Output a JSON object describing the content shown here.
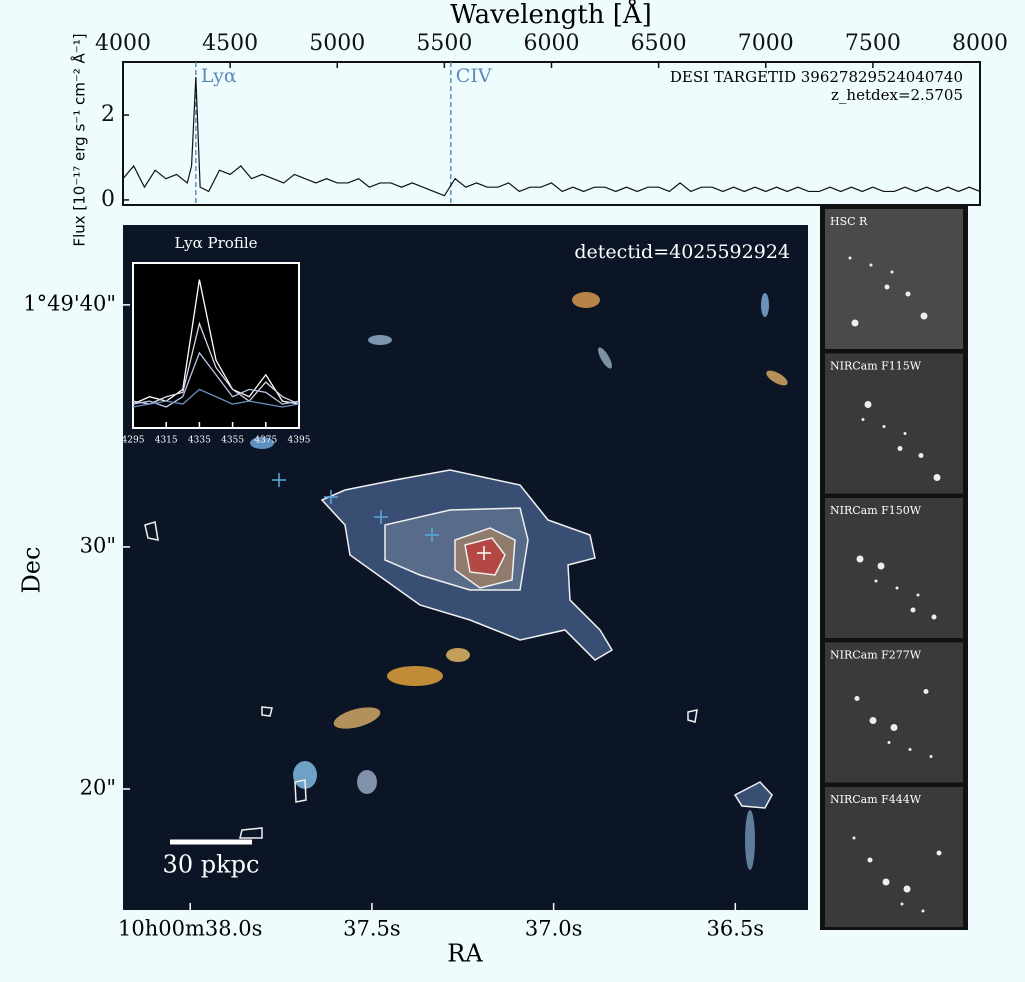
{
  "chart_data": [
    {
      "type": "line",
      "xlabel": "Wavelength [Å]",
      "ylabel": "Flux [10⁻¹⁷ erg s⁻¹ cm⁻² Å⁻¹]",
      "annotations": [
        "DESI TARGETID 39627829524040740",
        "z_hetdex=2.5705"
      ],
      "lines": [
        {
          "label": "Lyα",
          "x": 4340
        },
        {
          "label": "CIV",
          "x": 5530
        }
      ],
      "xlim": [
        4000,
        8000
      ],
      "xticks": [
        4000,
        4500,
        5000,
        5500,
        6000,
        6500,
        7000,
        7500,
        8000
      ],
      "ylim": [
        -0.12,
        3.25
      ],
      "yticks": [
        0,
        2
      ],
      "x": [
        4000,
        4050,
        4100,
        4150,
        4200,
        4250,
        4300,
        4320,
        4340,
        4360,
        4400,
        4450,
        4500,
        4550,
        4600,
        4650,
        4700,
        4750,
        4800,
        4850,
        4900,
        4950,
        5000,
        5050,
        5100,
        5150,
        5200,
        5250,
        5300,
        5350,
        5400,
        5450,
        5500,
        5550,
        5600,
        5650,
        5700,
        5750,
        5800,
        5850,
        5900,
        5950,
        6000,
        6050,
        6100,
        6150,
        6200,
        6250,
        6300,
        6350,
        6400,
        6450,
        6500,
        6550,
        6600,
        6650,
        6700,
        6750,
        6800,
        6850,
        6900,
        6950,
        7000,
        7050,
        7100,
        7150,
        7200,
        7250,
        7300,
        7350,
        7400,
        7450,
        7500,
        7550,
        7600,
        7650,
        7700,
        7750,
        7800,
        7850,
        7900,
        7950,
        8000
      ],
      "series": [
        {
          "color": "#111111",
          "values": [
            0.5,
            0.8,
            0.3,
            0.7,
            0.5,
            0.6,
            0.4,
            0.8,
            2.9,
            0.3,
            0.2,
            0.7,
            0.6,
            0.8,
            0.5,
            0.6,
            0.5,
            0.4,
            0.6,
            0.5,
            0.4,
            0.5,
            0.4,
            0.4,
            0.5,
            0.3,
            0.4,
            0.4,
            0.3,
            0.4,
            0.3,
            0.2,
            0.1,
            0.5,
            0.3,
            0.4,
            0.3,
            0.3,
            0.4,
            0.2,
            0.3,
            0.3,
            0.4,
            0.2,
            0.3,
            0.2,
            0.3,
            0.3,
            0.2,
            0.3,
            0.2,
            0.3,
            0.3,
            0.2,
            0.4,
            0.2,
            0.3,
            0.3,
            0.2,
            0.3,
            0.2,
            0.3,
            0.2,
            0.3,
            0.2,
            0.3,
            0.2,
            0.2,
            0.3,
            0.2,
            0.3,
            0.2,
            0.3,
            0.2,
            0.2,
            0.3,
            0.2,
            0.3,
            0.2,
            0.3,
            0.2,
            0.3,
            0.2
          ]
        }
      ]
    },
    {
      "type": "image",
      "xlabel": "RA",
      "ylabel": "Dec",
      "annotation": "detectid=4025592924",
      "scalebar": "30 pkpc",
      "xlim": [
        38.185,
        36.3
      ],
      "xticks": [
        {
          "value": 38.0,
          "label": "10h00m38.0s"
        },
        {
          "value": 37.5,
          "label": "37.5s"
        },
        {
          "value": 37.0,
          "label": "37.0s"
        },
        {
          "value": 36.5,
          "label": "36.5s"
        }
      ],
      "ylim": [
        15.0,
        43.3
      ],
      "yticks": [
        {
          "value": 40,
          "label": "1°49'40\""
        },
        {
          "value": 30,
          "label": "30\""
        },
        {
          "value": 20,
          "label": "20\""
        }
      ],
      "panels": [
        "HSC R",
        "NIRCam F115W",
        "NIRCam F150W",
        "NIRCam F277W",
        "NIRCam F444W"
      ]
    },
    {
      "type": "line",
      "title": "Lyα Profile",
      "xlim": [
        4295,
        4395
      ],
      "xticks": [
        4295,
        4315,
        4335,
        4355,
        4375,
        4395
      ],
      "ylim": [
        -0.05,
        1.05
      ],
      "x": [
        4295,
        4305,
        4315,
        4325,
        4335,
        4345,
        4355,
        4365,
        4375,
        4385,
        4395
      ],
      "series": [
        {
          "color": "#ffffff",
          "values": [
            0.1,
            0.15,
            0.12,
            0.2,
            0.95,
            0.4,
            0.2,
            0.15,
            0.3,
            0.12,
            0.1
          ]
        },
        {
          "color": "#d8d8e8",
          "values": [
            0.12,
            0.1,
            0.15,
            0.18,
            0.65,
            0.35,
            0.2,
            0.12,
            0.25,
            0.15,
            0.1
          ]
        },
        {
          "color": "#b8c8e8",
          "values": [
            0.1,
            0.12,
            0.08,
            0.15,
            0.45,
            0.3,
            0.15,
            0.2,
            0.18,
            0.1,
            0.12
          ]
        },
        {
          "color": "#6a8fc0",
          "values": [
            0.08,
            0.1,
            0.12,
            0.1,
            0.2,
            0.15,
            0.1,
            0.12,
            0.1,
            0.08,
            0.1
          ]
        }
      ]
    }
  ]
}
